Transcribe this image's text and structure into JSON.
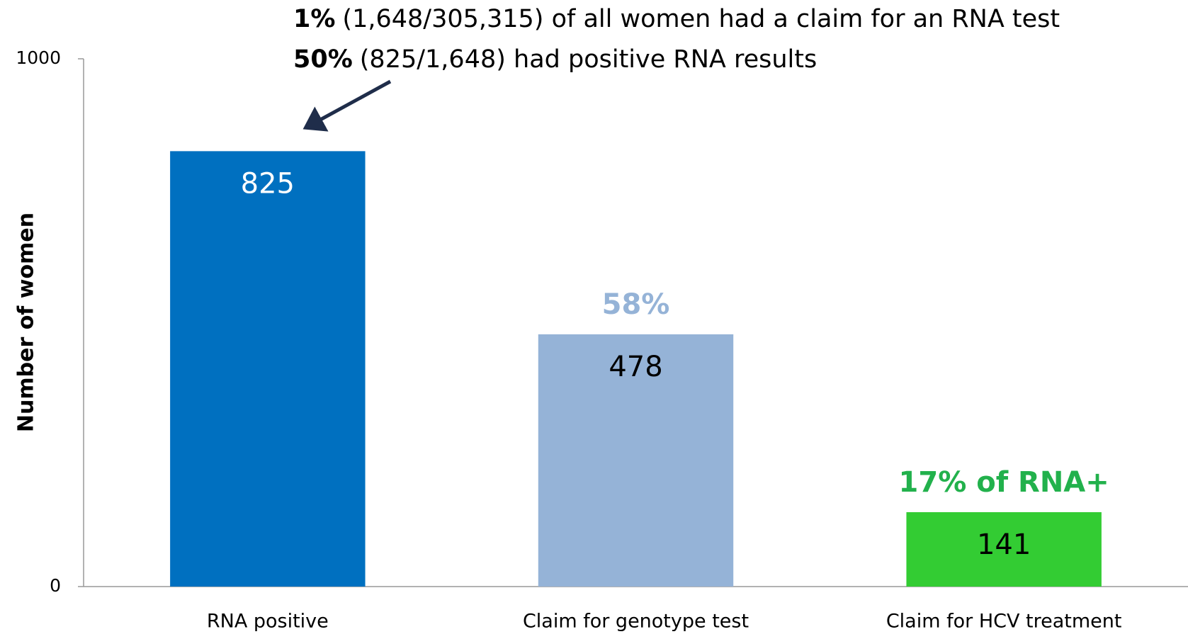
{
  "chart_data": {
    "type": "bar",
    "annotations": [
      {
        "bold": "1%",
        "text": "(1,648/305,315) of all women had a claim for an RNA test"
      },
      {
        "bold": "50%",
        "text": "(825/1,648) had positive RNA results"
      }
    ],
    "y_label": "Number of women",
    "categories": [
      "RNA positive",
      "Claim for genotype test",
      "Claim for HCV treatment"
    ],
    "values": [
      825,
      478,
      141
    ],
    "colors": [
      "#0070c0",
      "#95b3d7",
      "#33cc33"
    ],
    "percent_labels": [
      null,
      "58%",
      "17% of RNA+"
    ],
    "ylim": [
      0,
      1000
    ],
    "yticks": [
      0,
      1000
    ],
    "grid": false
  }
}
